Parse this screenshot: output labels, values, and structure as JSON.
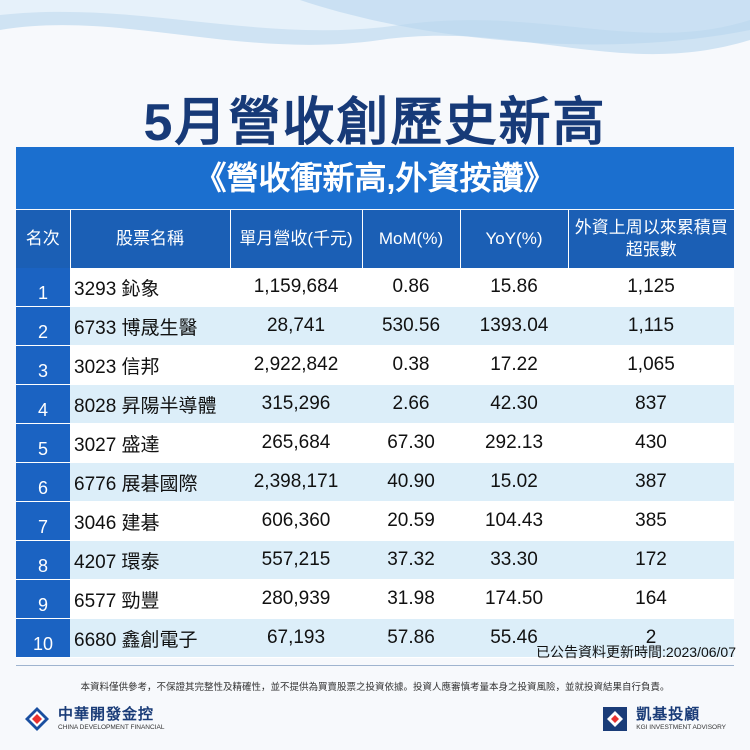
{
  "title": "5月營收創歷史新高",
  "subtitle": "《營收衝新高,外資按讚》",
  "table": {
    "headers": [
      "名次",
      "股票名稱",
      "單月營收(千元)",
      "MoM(%)",
      "YoY(%)",
      "外資上周以來累積買超張數"
    ],
    "rows": [
      {
        "rank": "1",
        "stock": "3293 鈊象",
        "revenue": "1,159,684",
        "mom": "0.86",
        "yoy": "15.86",
        "buy": "1,125"
      },
      {
        "rank": "2",
        "stock": "6733 博晟生醫",
        "revenue": "28,741",
        "mom": "530.56",
        "yoy": "1393.04",
        "buy": "1,115"
      },
      {
        "rank": "3",
        "stock": "3023 信邦",
        "revenue": "2,922,842",
        "mom": "0.38",
        "yoy": "17.22",
        "buy": "1,065"
      },
      {
        "rank": "4",
        "stock": "8028 昇陽半導體",
        "revenue": "315,296",
        "mom": "2.66",
        "yoy": "42.30",
        "buy": "837"
      },
      {
        "rank": "5",
        "stock": "3027 盛達",
        "revenue": "265,684",
        "mom": "67.30",
        "yoy": "292.13",
        "buy": "430"
      },
      {
        "rank": "6",
        "stock": "6776 展碁國際",
        "revenue": "2,398,171",
        "mom": "40.90",
        "yoy": "15.02",
        "buy": "387"
      },
      {
        "rank": "7",
        "stock": "3046 建碁",
        "revenue": "606,360",
        "mom": "20.59",
        "yoy": "104.43",
        "buy": "385"
      },
      {
        "rank": "8",
        "stock": "4207 環泰",
        "revenue": "557,215",
        "mom": "37.32",
        "yoy": "33.30",
        "buy": "172"
      },
      {
        "rank": "9",
        "stock": "6577 勁豐",
        "revenue": "280,939",
        "mom": "31.98",
        "yoy": "174.50",
        "buy": "164"
      },
      {
        "rank": "10",
        "stock": "6680 鑫創電子",
        "revenue": "67,193",
        "mom": "57.86",
        "yoy": "55.46",
        "buy": "2"
      }
    ]
  },
  "updated": "已公告資料更新時間:2023/06/07",
  "disclaimer": "本資料僅供參考，不保證其完整性及精確性，並不提供為買賣股票之投資依據。投資人應審慎考量本身之投資風險，並就投資結果自行負責。",
  "logos": {
    "left_zh": "中華開發金控",
    "left_en": "CHINA DEVELOPMENT FINANCIAL",
    "right_zh": "凱基投顧",
    "right_en": "KGI INVESTMENT ADVISORY"
  },
  "colors": {
    "title": "#173a78",
    "banner": "#1b6fcf",
    "header": "#1b5fb5",
    "rank_cell": "#1b63c2",
    "row_alt": "#dceef9"
  }
}
